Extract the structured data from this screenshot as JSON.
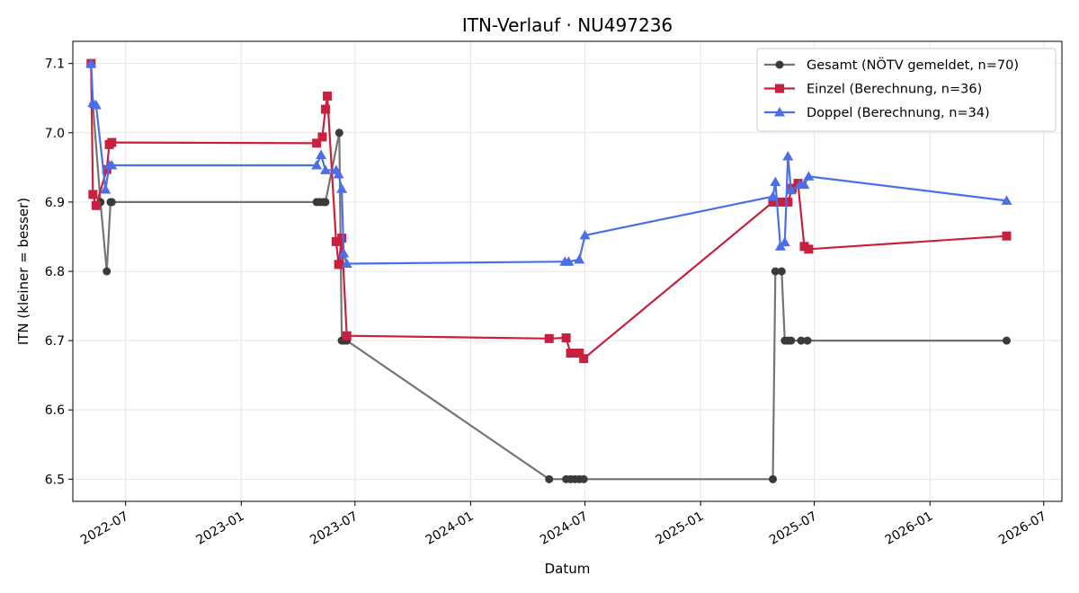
{
  "chart_data": {
    "type": "line",
    "title": "ITN-Verlauf · NU497236",
    "xlabel": "Datum",
    "ylabel": "ITN  (kleiner = besser)",
    "x_type": "date",
    "xlim": [
      "2022-04-08",
      "2026-07-30"
    ],
    "ylim": [
      6.468,
      7.132
    ],
    "x_ticks": [
      "2022-07",
      "2023-01",
      "2023-07",
      "2024-01",
      "2024-07",
      "2025-01",
      "2025-07",
      "2026-01",
      "2026-07"
    ],
    "x_tick_dates": [
      "2022-07-01",
      "2023-01-01",
      "2023-07-01",
      "2024-01-01",
      "2024-07-01",
      "2025-01-01",
      "2025-07-01",
      "2026-01-01",
      "2026-07-01"
    ],
    "y_ticks": [
      6.5,
      6.6,
      6.7,
      6.8,
      6.9,
      7.0,
      7.1
    ],
    "y_tick_labels": [
      "6.5",
      "6.6",
      "6.7",
      "6.8",
      "6.9",
      "7.0",
      "7.1"
    ],
    "grid": true,
    "legend_position": "top-right",
    "series": [
      {
        "name": "Gesamt (NÖTV gemeldet, n=70)",
        "color": "#3a3a3a",
        "marker": "circle",
        "points": [
          [
            "2022-05-07",
            7.1
          ],
          [
            "2022-05-10",
            7.04
          ],
          [
            "2022-05-22",
            6.9
          ],
          [
            "2022-06-01",
            6.8
          ],
          [
            "2022-06-07",
            6.9
          ],
          [
            "2022-06-09",
            6.9
          ],
          [
            "2023-05-01",
            6.9
          ],
          [
            "2023-05-06",
            6.9
          ],
          [
            "2023-05-12",
            6.9
          ],
          [
            "2023-05-15",
            6.9
          ],
          [
            "2023-06-06",
            7.0
          ],
          [
            "2023-06-10",
            6.7
          ],
          [
            "2023-06-14",
            6.7
          ],
          [
            "2023-06-18",
            6.7
          ],
          [
            "2024-05-05",
            6.5
          ],
          [
            "2024-06-01",
            6.5
          ],
          [
            "2024-06-08",
            6.5
          ],
          [
            "2024-06-15",
            6.5
          ],
          [
            "2024-06-22",
            6.5
          ],
          [
            "2024-06-29",
            6.5
          ],
          [
            "2025-04-26",
            6.5
          ],
          [
            "2025-04-30",
            6.8
          ],
          [
            "2025-05-10",
            6.8
          ],
          [
            "2025-05-15",
            6.7
          ],
          [
            "2025-05-20",
            6.7
          ],
          [
            "2025-05-25",
            6.7
          ],
          [
            "2025-06-10",
            6.7
          ],
          [
            "2025-06-20",
            6.7
          ],
          [
            "2026-05-03",
            6.7
          ]
        ]
      },
      {
        "name": "Einzel (Berechnung, n=36)",
        "color": "#c8203f",
        "marker": "square",
        "points": [
          [
            "2022-05-07",
            7.1
          ],
          [
            "2022-05-10",
            6.911
          ],
          [
            "2022-05-15",
            6.895
          ],
          [
            "2022-06-01",
            6.947
          ],
          [
            "2022-06-05",
            6.983
          ],
          [
            "2022-06-09",
            6.986
          ],
          [
            "2023-05-01",
            6.985
          ],
          [
            "2023-05-10",
            6.994
          ],
          [
            "2023-05-15",
            7.034
          ],
          [
            "2023-05-18",
            7.053
          ],
          [
            "2023-06-01",
            6.843
          ],
          [
            "2023-06-05",
            6.81
          ],
          [
            "2023-06-10",
            6.848
          ],
          [
            "2023-06-18",
            6.707
          ],
          [
            "2024-05-05",
            6.703
          ],
          [
            "2024-06-01",
            6.704
          ],
          [
            "2024-06-08",
            6.682
          ],
          [
            "2024-06-15",
            6.682
          ],
          [
            "2024-06-22",
            6.682
          ],
          [
            "2024-06-29",
            6.674
          ],
          [
            "2025-04-26",
            6.9
          ],
          [
            "2025-05-08",
            6.9
          ],
          [
            "2025-05-20",
            6.9
          ],
          [
            "2025-05-27",
            6.92
          ],
          [
            "2025-06-05",
            6.927
          ],
          [
            "2025-06-15",
            6.836
          ],
          [
            "2025-06-22",
            6.832
          ],
          [
            "2026-05-03",
            6.851
          ]
        ]
      },
      {
        "name": "Doppel (Berechnung, n=34)",
        "color": "#4c6ee6",
        "marker": "triangle",
        "points": [
          [
            "2022-05-07",
            7.1
          ],
          [
            "2022-05-10",
            7.043
          ],
          [
            "2022-05-15",
            7.04
          ],
          [
            "2022-05-30",
            6.918
          ],
          [
            "2022-06-05",
            6.953
          ],
          [
            "2022-06-09",
            6.953
          ],
          [
            "2023-05-01",
            6.953
          ],
          [
            "2023-05-08",
            6.968
          ],
          [
            "2023-05-15",
            6.946
          ],
          [
            "2023-06-01",
            6.946
          ],
          [
            "2023-06-05",
            6.94
          ],
          [
            "2023-06-10",
            6.919
          ],
          [
            "2023-06-13",
            6.826
          ],
          [
            "2023-06-18",
            6.811
          ],
          [
            "2024-05-30",
            6.814
          ],
          [
            "2024-06-05",
            6.814
          ],
          [
            "2024-06-22",
            6.817
          ],
          [
            "2024-07-01",
            6.852
          ],
          [
            "2025-04-26",
            6.908
          ],
          [
            "2025-04-30",
            6.929
          ],
          [
            "2025-05-08",
            6.836
          ],
          [
            "2025-05-15",
            6.842
          ],
          [
            "2025-05-20",
            6.966
          ],
          [
            "2025-05-25",
            6.917
          ],
          [
            "2025-06-08",
            6.925
          ],
          [
            "2025-06-15",
            6.925
          ],
          [
            "2025-06-22",
            6.937
          ],
          [
            "2026-05-03",
            6.902
          ]
        ]
      }
    ]
  }
}
